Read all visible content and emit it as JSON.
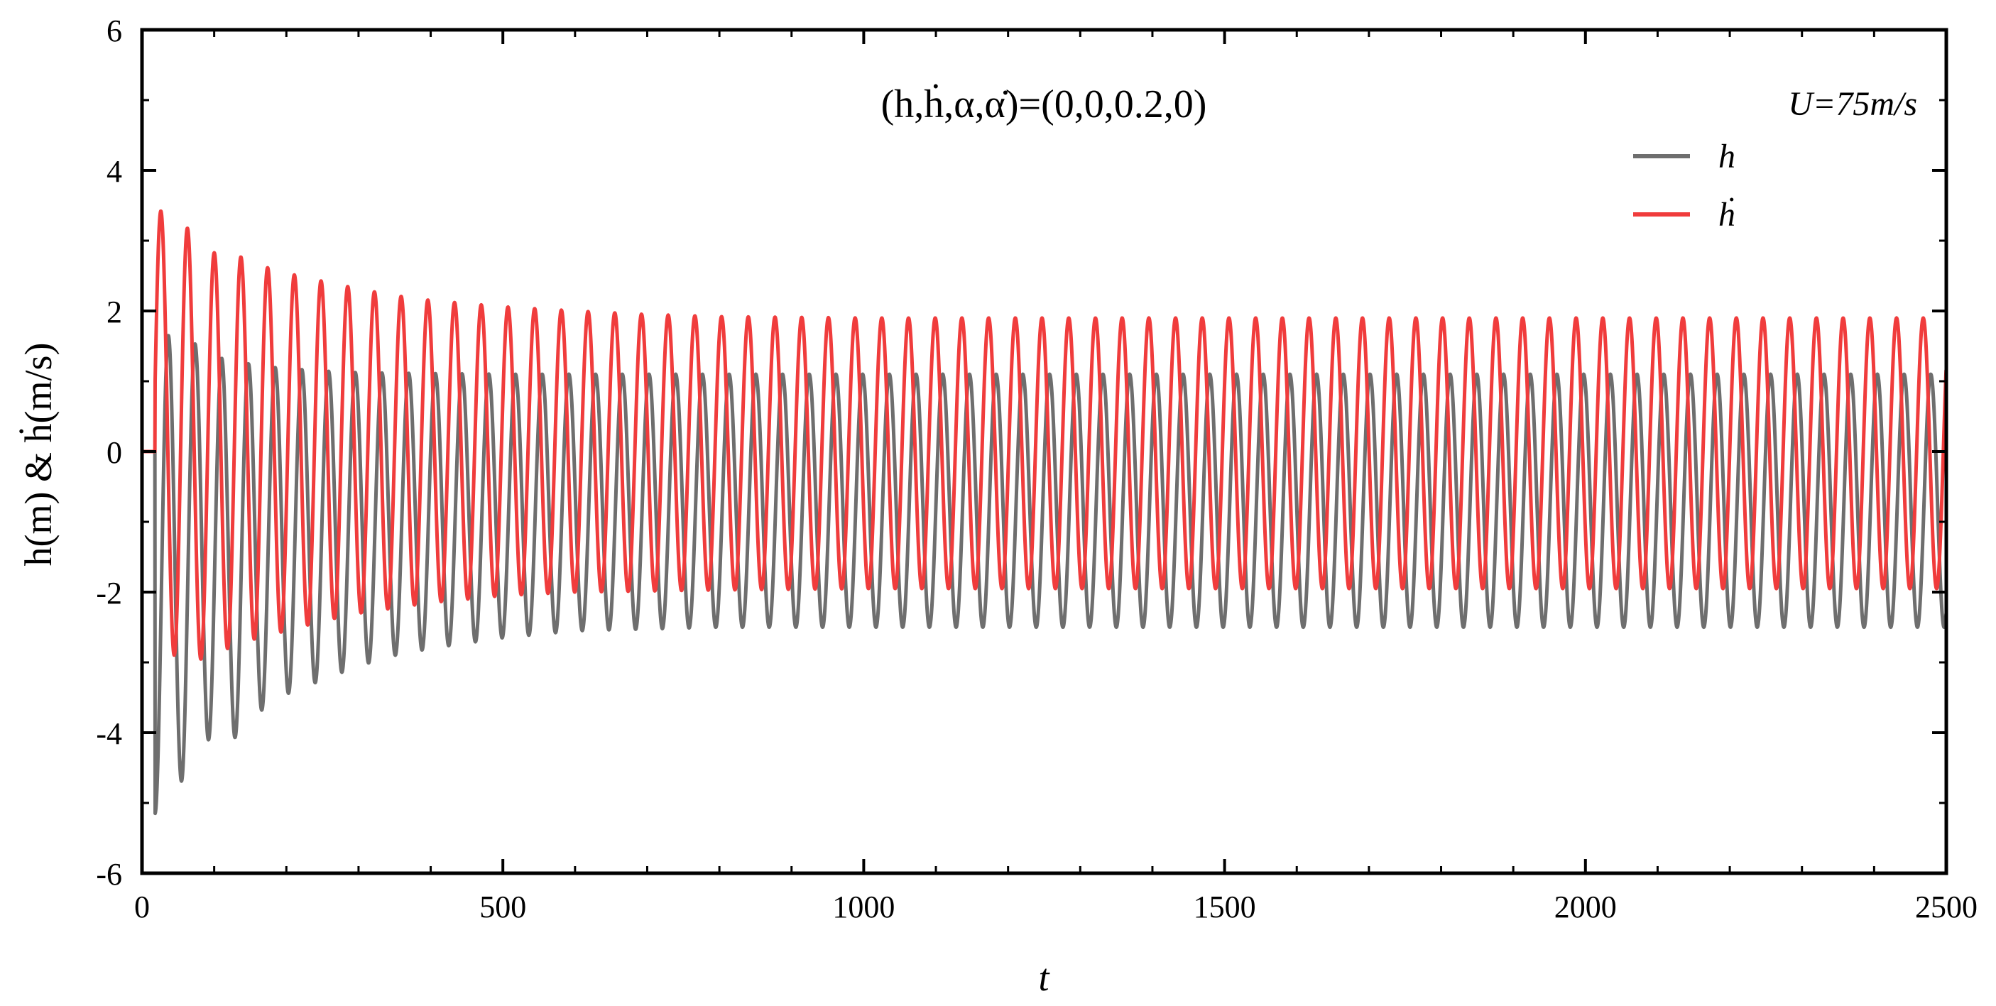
{
  "chart_data": {
    "type": "line",
    "title": "",
    "annotation": {
      "initial_condition": "(h,ḣ,α,α̇)=(0,0,0.2,0)"
    },
    "legend": {
      "header": "U=75m/s",
      "position": "top-right",
      "entries": [
        {
          "name": "h",
          "color": "#6e6e6e"
        },
        {
          "name": "ḣ",
          "color": "#f03c3c"
        }
      ]
    },
    "xlabel": "t",
    "ylabel": "h(m) & ḣ(m/s)",
    "xlim": [
      0,
      2500
    ],
    "ylim": [
      -6,
      6
    ],
    "x_ticks": [
      0,
      500,
      1000,
      1500,
      2000,
      2500
    ],
    "y_ticks": [
      -6,
      -4,
      -2,
      0,
      2,
      4,
      6
    ],
    "x_tick_labels": [
      "0",
      "500",
      "1000",
      "1500",
      "2000",
      "2500"
    ],
    "y_tick_labels": [
      "-6",
      "-4",
      "-2",
      "0",
      "2",
      "4",
      "6"
    ],
    "grid": false,
    "series": [
      {
        "name": "h",
        "color": "#6e6e6e",
        "description_period": 37,
        "peaks": [
          [
            52,
            1.65
          ],
          [
            115,
            1.3
          ],
          [
            178,
            1.2
          ],
          [
            241,
            1.15
          ],
          [
            304,
            1.12
          ],
          [
            500,
            1.1
          ],
          [
            1000,
            1.1
          ],
          [
            1500,
            1.1
          ],
          [
            2000,
            1.1
          ],
          [
            2480,
            1.1
          ]
        ],
        "troughs": [
          [
            40,
            -5.15
          ],
          [
            77,
            -4.0
          ],
          [
            114,
            -4.25
          ],
          [
            151,
            -3.8
          ],
          [
            188,
            -3.5
          ],
          [
            225,
            -3.35
          ],
          [
            262,
            -3.2
          ],
          [
            300,
            -3.05
          ],
          [
            350,
            -2.9
          ],
          [
            400,
            -2.8
          ],
          [
            500,
            -2.65
          ],
          [
            600,
            -2.55
          ],
          [
            800,
            -2.5
          ],
          [
            1000,
            -2.5
          ],
          [
            1500,
            -2.5
          ],
          [
            2000,
            -2.5
          ],
          [
            2480,
            -2.5
          ]
        ]
      },
      {
        "name": "ḣ",
        "color": "#f03c3c",
        "description_period": 37,
        "peaks": [
          [
            48,
            3.42
          ],
          [
            85,
            2.82
          ],
          [
            122,
            2.84
          ],
          [
            159,
            2.66
          ],
          [
            196,
            2.55
          ],
          [
            233,
            2.46
          ],
          [
            270,
            2.38
          ],
          [
            307,
            2.3
          ],
          [
            350,
            2.22
          ],
          [
            400,
            2.15
          ],
          [
            500,
            2.06
          ],
          [
            600,
            2.0
          ],
          [
            700,
            1.95
          ],
          [
            800,
            1.92
          ],
          [
            1000,
            1.9
          ],
          [
            1500,
            1.9
          ],
          [
            2000,
            1.9
          ],
          [
            2480,
            1.9
          ]
        ],
        "troughs": [
          [
            33,
            -2.85
          ],
          [
            70,
            -3.0
          ],
          [
            107,
            -2.85
          ],
          [
            144,
            -2.7
          ],
          [
            181,
            -2.6
          ],
          [
            218,
            -2.5
          ],
          [
            255,
            -2.4
          ],
          [
            300,
            -2.3
          ],
          [
            400,
            -2.15
          ],
          [
            500,
            -2.05
          ],
          [
            600,
            -2.0
          ],
          [
            800,
            -1.97
          ],
          [
            1000,
            -1.95
          ],
          [
            1500,
            -1.95
          ],
          [
            2000,
            -1.95
          ],
          [
            2480,
            -1.95
          ]
        ]
      }
    ]
  }
}
